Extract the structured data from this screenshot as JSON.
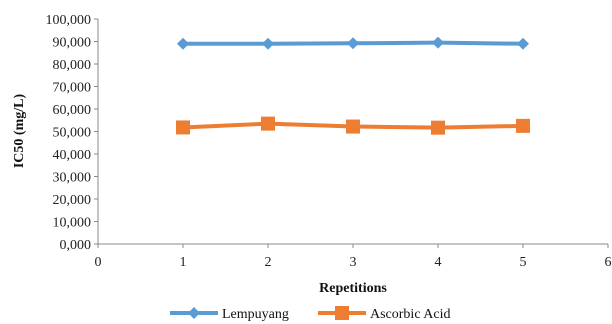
{
  "chart_data": {
    "type": "line",
    "title": "",
    "xlabel": "Repetitions",
    "ylabel": "IC50 (mg/L)",
    "xlim": [
      0,
      6
    ],
    "ylim": [
      0,
      100000
    ],
    "x_ticks": [
      "0",
      "1",
      "2",
      "3",
      "4",
      "5",
      "6"
    ],
    "y_ticks": [
      "0,000",
      "10,000",
      "20,000",
      "30,000",
      "40,000",
      "50,000",
      "60,000",
      "70,000",
      "80,000",
      "90,000",
      "100,000"
    ],
    "x": [
      1,
      2,
      3,
      4,
      5
    ],
    "series": [
      {
        "name": "Lempuyang",
        "values": [
          89000,
          89000,
          89200,
          89500,
          89000
        ],
        "color": "#5b9bd5",
        "marker": "diamond"
      },
      {
        "name": "Ascorbic Acid",
        "values": [
          51800,
          53500,
          52200,
          51700,
          52500
        ],
        "color": "#ed7d31",
        "marker": "square"
      }
    ],
    "grid": false,
    "legend": "bottom"
  }
}
